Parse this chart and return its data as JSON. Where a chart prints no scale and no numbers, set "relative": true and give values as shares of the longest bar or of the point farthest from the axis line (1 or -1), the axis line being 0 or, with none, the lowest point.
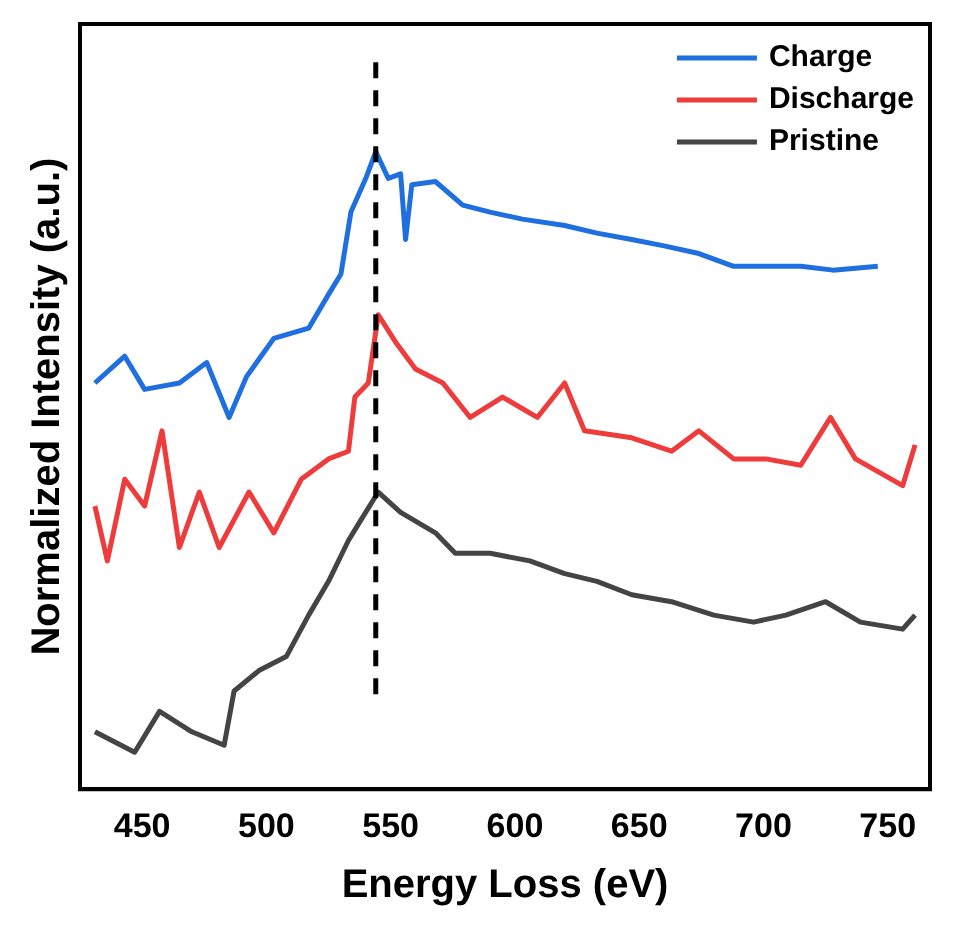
{
  "chart_data": {
    "type": "line",
    "relative": true,
    "xlabel": "Energy Loss (eV)",
    "ylabel": "Normalized Intensity (a.u.)",
    "xlim": [
      425,
      767
    ],
    "xticks": [
      450,
      500,
      550,
      600,
      650,
      700,
      750
    ],
    "legend": "top right",
    "grid": false,
    "marker": "none",
    "line_style": "solid",
    "ref_lines": [
      {
        "axis": "x",
        "value": 544,
        "line_style": "dashed",
        "color": "#000000"
      }
    ],
    "series": [
      {
        "name": "Charge",
        "color": "#1f6fe0",
        "x": [
          431,
          443,
          451,
          465,
          476,
          485,
          492,
          503,
          517,
          525,
          530,
          534,
          540,
          544,
          549,
          554,
          556,
          558.5,
          568,
          579,
          590,
          603,
          620,
          633,
          647,
          660,
          674,
          688,
          701,
          715,
          728,
          746
        ],
        "values": [
          0.637,
          0.679,
          0.627,
          0.637,
          0.669,
          0.583,
          0.647,
          0.707,
          0.723,
          0.776,
          0.808,
          0.905,
          0.958,
          1.0,
          0.958,
          0.965,
          0.862,
          0.948,
          0.953,
          0.916,
          0.905,
          0.894,
          0.884,
          0.872,
          0.862,
          0.852,
          0.84,
          0.82,
          0.82,
          0.82,
          0.814,
          0.82
        ]
      },
      {
        "name": "Discharge",
        "color": "#ee3b3b",
        "x": [
          431,
          436,
          443,
          451,
          458,
          465,
          473,
          481,
          493,
          503,
          514,
          525,
          533,
          535.6,
          541,
          545,
          552,
          560,
          571,
          582,
          595,
          609,
          620,
          628,
          647,
          663,
          674,
          688,
          701,
          715,
          727,
          737,
          756,
          761
        ],
        "values": [
          0.444,
          0.358,
          0.486,
          0.444,
          0.562,
          0.379,
          0.466,
          0.379,
          0.466,
          0.402,
          0.486,
          0.518,
          0.53,
          0.615,
          0.637,
          0.744,
          0.701,
          0.659,
          0.637,
          0.583,
          0.615,
          0.583,
          0.637,
          0.562,
          0.551,
          0.53,
          0.562,
          0.518,
          0.518,
          0.508,
          0.583,
          0.518,
          0.476,
          0.54
        ]
      },
      {
        "name": "Pristine",
        "color": "#444444",
        "x": [
          431,
          447,
          457,
          470,
          483,
          487,
          497,
          508,
          517,
          525,
          533,
          538,
          545,
          554,
          568,
          576,
          590,
          606,
          620,
          633,
          647,
          663,
          680,
          696,
          709,
          725,
          739,
          756,
          761
        ],
        "values": [
          0.09,
          0.058,
          0.122,
          0.09,
          0.069,
          0.154,
          0.186,
          0.208,
          0.273,
          0.326,
          0.39,
          0.422,
          0.466,
          0.434,
          0.402,
          0.37,
          0.37,
          0.358,
          0.338,
          0.326,
          0.305,
          0.294,
          0.273,
          0.262,
          0.273,
          0.294,
          0.262,
          0.251,
          0.273
        ]
      }
    ]
  }
}
